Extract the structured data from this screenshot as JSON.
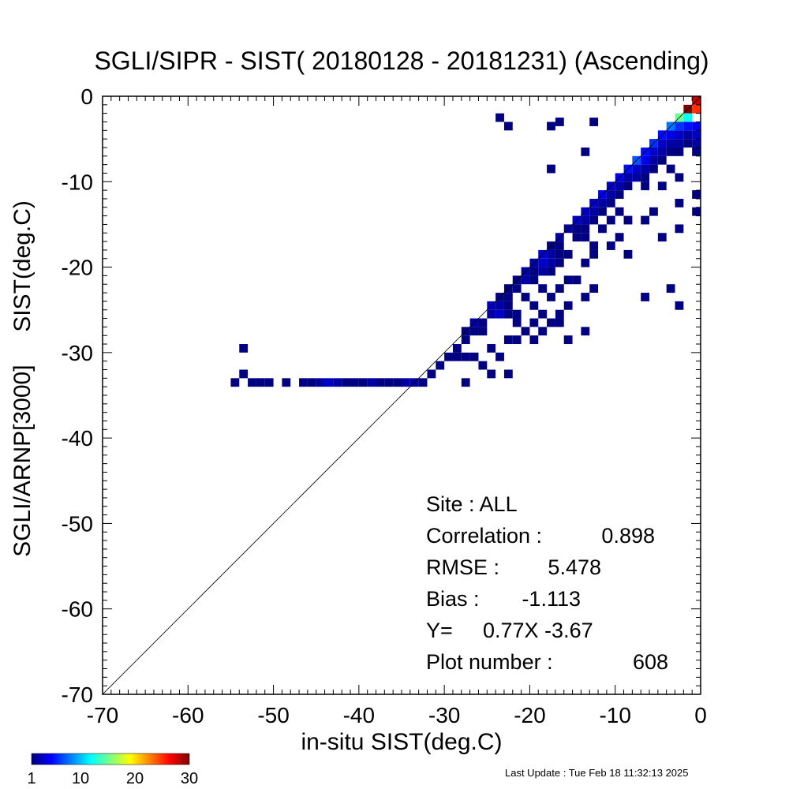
{
  "chart_data": {
    "type": "heatmap",
    "title": "SGLI/SIPR - SIST( 20180128 - 20181231) (Ascending)",
    "xlabel": "in-situ SIST(deg.C)",
    "ylabel": "SGLI/ARNP[3000]     SIST(deg.C)",
    "xlim": [
      -70,
      0
    ],
    "ylim": [
      -70,
      0
    ],
    "x_ticks": [
      "-70",
      "-60",
      "-50",
      "-40",
      "-30",
      "-20",
      "-10",
      "0"
    ],
    "y_ticks": [
      "0",
      "-10",
      "-20",
      "-30",
      "-40",
      "-50",
      "-60",
      "-70"
    ],
    "grid": false,
    "reference_line": "y = x",
    "bin_size": 1,
    "colorbar": {
      "range": [
        1,
        30
      ],
      "ticks": [
        "1",
        "10",
        "20",
        "30"
      ],
      "colormap": "jet"
    },
    "stats": [
      {
        "label": "Site : ALL",
        "value": ""
      },
      {
        "label": "Correlation :",
        "value": "0.898"
      },
      {
        "label": "RMSE :",
        "value": "5.478"
      },
      {
        "label": "Bias :",
        "value": "-1.113"
      },
      {
        "label": "Y=",
        "value": "0.77X  -3.67"
      },
      {
        "label": "Plot number :",
        "value": "608"
      }
    ],
    "cells": [
      [
        -1.5,
        -1.5,
        30
      ],
      [
        -2.5,
        -2.5,
        15
      ],
      [
        -1.5,
        -2.5,
        12
      ],
      [
        -0.5,
        -1.5,
        25
      ],
      [
        -0.5,
        -0.5,
        28
      ],
      [
        -3.5,
        -3.5,
        8
      ],
      [
        -2.5,
        -3.5,
        6
      ],
      [
        -1.5,
        -3.5,
        5
      ],
      [
        -0.5,
        -3.5,
        4
      ],
      [
        -0.5,
        -4.5,
        3
      ],
      [
        -4.5,
        -4.5,
        5
      ],
      [
        -3.5,
        -4.5,
        4
      ],
      [
        -2.5,
        -4.5,
        3
      ],
      [
        -1.5,
        -4.5,
        2
      ],
      [
        -0.5,
        -5.5,
        2
      ],
      [
        -5.5,
        -5.5,
        6
      ],
      [
        -4.5,
        -5.5,
        3
      ],
      [
        -3.5,
        -5.5,
        2
      ],
      [
        -2.5,
        -5.5,
        2
      ],
      [
        -1.5,
        -5.5,
        1
      ],
      [
        -6.5,
        -6.5,
        5
      ],
      [
        -5.5,
        -6.5,
        3
      ],
      [
        -4.5,
        -6.5,
        2
      ],
      [
        -3.5,
        -6.5,
        1
      ],
      [
        -2.5,
        -6.5,
        1
      ],
      [
        -7.5,
        -7.5,
        7
      ],
      [
        -6.5,
        -7.5,
        4
      ],
      [
        -5.5,
        -7.5,
        2
      ],
      [
        -4.5,
        -7.5,
        1
      ],
      [
        -0.5,
        -6.5,
        1
      ],
      [
        -8.5,
        -8.5,
        5
      ],
      [
        -7.5,
        -8.5,
        3
      ],
      [
        -6.5,
        -8.5,
        2
      ],
      [
        -5.5,
        -8.5,
        1
      ],
      [
        -3.5,
        -8.5,
        1
      ],
      [
        -9.5,
        -9.5,
        4
      ],
      [
        -8.5,
        -9.5,
        2
      ],
      [
        -7.5,
        -9.5,
        2
      ],
      [
        -6.5,
        -9.5,
        1
      ],
      [
        -2.5,
        -9.5,
        1
      ],
      [
        -10.5,
        -10.5,
        3
      ],
      [
        -9.5,
        -10.5,
        2
      ],
      [
        -8.5,
        -10.5,
        1
      ],
      [
        -6.5,
        -10.5,
        1
      ],
      [
        -4.5,
        -10.5,
        1
      ],
      [
        -11.5,
        -11.5,
        4
      ],
      [
        -10.5,
        -11.5,
        2
      ],
      [
        -9.5,
        -11.5,
        1
      ],
      [
        -0.5,
        -11.5,
        1
      ],
      [
        -2.5,
        -12.5,
        1
      ],
      [
        -12.5,
        -12.5,
        3
      ],
      [
        -11.5,
        -12.5,
        2
      ],
      [
        -10.5,
        -12.5,
        1
      ],
      [
        -9.5,
        -13.5,
        1
      ],
      [
        -5.5,
        -13.5,
        1
      ],
      [
        -13.5,
        -13.5,
        3
      ],
      [
        -12.5,
        -13.5,
        2
      ],
      [
        -11.5,
        -13.5,
        1
      ],
      [
        -8.5,
        -14.5,
        1
      ],
      [
        -6.5,
        -14.5,
        1
      ],
      [
        -14.5,
        -14.5,
        3
      ],
      [
        -13.5,
        -14.5,
        2
      ],
      [
        -12.5,
        -14.5,
        1
      ],
      [
        -10.5,
        -14.5,
        1
      ],
      [
        -0.5,
        -13.5,
        1
      ],
      [
        -15.5,
        -15.5,
        2
      ],
      [
        -14.5,
        -15.5,
        1
      ],
      [
        -13.5,
        -15.5,
        1
      ],
      [
        -11.5,
        -15.5,
        1
      ],
      [
        -2.5,
        -15.5,
        1
      ],
      [
        -14.5,
        -16.5,
        1
      ],
      [
        -13.5,
        -16.5,
        1
      ],
      [
        -9.5,
        -16.5,
        1
      ],
      [
        -4.5,
        -16.5,
        1
      ],
      [
        -12.5,
        -17.5,
        1
      ],
      [
        -16.5,
        -16.5,
        2
      ],
      [
        -17.5,
        -17.5,
        1
      ],
      [
        -16.5,
        -17.5,
        1
      ],
      [
        -10.5,
        -17.5,
        1
      ],
      [
        -8.5,
        -18.5,
        1
      ],
      [
        -18.5,
        -18.5,
        3
      ],
      [
        -17.5,
        -18.5,
        2
      ],
      [
        -16.5,
        -18.5,
        1
      ],
      [
        -15.5,
        -18.5,
        1
      ],
      [
        -12.5,
        -18.5,
        1
      ],
      [
        -19.5,
        -19.5,
        2
      ],
      [
        -18.5,
        -19.5,
        3
      ],
      [
        -17.5,
        -19.5,
        2
      ],
      [
        -16.5,
        -19.5,
        1
      ],
      [
        -13.5,
        -19.5,
        1
      ],
      [
        -20.5,
        -20.5,
        2
      ],
      [
        -19.5,
        -20.5,
        1
      ],
      [
        -18.5,
        -20.5,
        2
      ],
      [
        -17.5,
        -20.5,
        1
      ],
      [
        -15.5,
        -21.5,
        1
      ],
      [
        -21.5,
        -21.5,
        1
      ],
      [
        -20.5,
        -21.5,
        2
      ],
      [
        -19.5,
        -21.5,
        1
      ],
      [
        -14.5,
        -21.5,
        1
      ],
      [
        -12.5,
        -22.5,
        1
      ],
      [
        -22.5,
        -22.5,
        1
      ],
      [
        -21.5,
        -22.5,
        1
      ],
      [
        -18.5,
        -22.5,
        1
      ],
      [
        -16.5,
        -22.5,
        1
      ],
      [
        -13.5,
        -23.5,
        1
      ],
      [
        -23.5,
        -23.5,
        1
      ],
      [
        -22.5,
        -23.5,
        1
      ],
      [
        -20.5,
        -23.5,
        1
      ],
      [
        -17.5,
        -23.5,
        1
      ],
      [
        -15.5,
        -24.5,
        1
      ],
      [
        -24.5,
        -24.5,
        3
      ],
      [
        -23.5,
        -24.5,
        2
      ],
      [
        -22.5,
        -24.5,
        1
      ],
      [
        -19.5,
        -24.5,
        1
      ],
      [
        -18.5,
        -25.5,
        1
      ],
      [
        -24.5,
        -25.5,
        2
      ],
      [
        -23.5,
        -25.5,
        3
      ],
      [
        -22.5,
        -25.5,
        1
      ],
      [
        -21.5,
        -25.5,
        1
      ],
      [
        -16.5,
        -25.5,
        1
      ],
      [
        -25.5,
        -26.5,
        1
      ],
      [
        -21.5,
        -26.5,
        1
      ],
      [
        -19.5,
        -26.5,
        1
      ],
      [
        -17.5,
        -26.5,
        1
      ],
      [
        -16.5,
        -26.5,
        1
      ],
      [
        -26.5,
        -26.5,
        2
      ],
      [
        -25.5,
        -27.5,
        1
      ],
      [
        -20.5,
        -27.5,
        1
      ],
      [
        -18.5,
        -27.5,
        1
      ],
      [
        -13.5,
        -27.5,
        1
      ],
      [
        -27.5,
        -27.5,
        1
      ],
      [
        -26.5,
        -27.5,
        1
      ],
      [
        -22.5,
        -28.5,
        1
      ],
      [
        -21.5,
        -28.5,
        1
      ],
      [
        -19.5,
        -28.5,
        1
      ],
      [
        -28.5,
        -29.5,
        1
      ],
      [
        -27.5,
        -28.5,
        1
      ],
      [
        -24.5,
        -29.5,
        1
      ],
      [
        -15.5,
        -28.5,
        1
      ],
      [
        -23.5,
        -30.5,
        1
      ],
      [
        -29.5,
        -30.5,
        1
      ],
      [
        -28.5,
        -30.5,
        1
      ],
      [
        -27.5,
        -30.5,
        1
      ],
      [
        -25.5,
        -31.5,
        1
      ],
      [
        -26.5,
        -30.5,
        1
      ],
      [
        -30.5,
        -31.5,
        1
      ],
      [
        -31.5,
        -32.5,
        1
      ],
      [
        -24.5,
        -32.5,
        1
      ],
      [
        -22.5,
        -32.5,
        1
      ],
      [
        -27.5,
        -33.5,
        1
      ],
      [
        -32.5,
        -33.5,
        1
      ],
      [
        -33.5,
        -33.5,
        2
      ],
      [
        -34.5,
        -33.5,
        2
      ],
      [
        -35.5,
        -33.5,
        1
      ],
      [
        -36.5,
        -33.5,
        1
      ],
      [
        -37.5,
        -33.5,
        1
      ],
      [
        -38.5,
        -33.5,
        2
      ],
      [
        -39.5,
        -33.5,
        1
      ],
      [
        -40.5,
        -33.5,
        1
      ],
      [
        -41.5,
        -33.5,
        1
      ],
      [
        -42.5,
        -33.5,
        2
      ],
      [
        -43.5,
        -33.5,
        3
      ],
      [
        -44.5,
        -33.5,
        2
      ],
      [
        -45.5,
        -33.5,
        1
      ],
      [
        -46.5,
        -33.5,
        1
      ],
      [
        -48.5,
        -33.5,
        1
      ],
      [
        -50.5,
        -33.5,
        1
      ],
      [
        -51.5,
        -33.5,
        1
      ],
      [
        -52.5,
        -33.5,
        1
      ],
      [
        -54.5,
        -33.5,
        1
      ],
      [
        -53.5,
        -32.5,
        1
      ],
      [
        -53.5,
        -29.5,
        1
      ],
      [
        -23.5,
        -2.5,
        1
      ],
      [
        -22.5,
        -3.5,
        1
      ],
      [
        -17.5,
        -3.5,
        1
      ],
      [
        -16.5,
        -3.0,
        1
      ],
      [
        -12.5,
        -3.0,
        1
      ],
      [
        -17.5,
        -8.5,
        1
      ],
      [
        -13.5,
        -6.5,
        1
      ],
      [
        -6.5,
        -23.5,
        1
      ],
      [
        -3.5,
        -22.5,
        1
      ],
      [
        -2.5,
        -24.5,
        1
      ]
    ]
  },
  "footer": {
    "last_update": "Last Update : Tue Feb 18 11:32:13 2025"
  }
}
